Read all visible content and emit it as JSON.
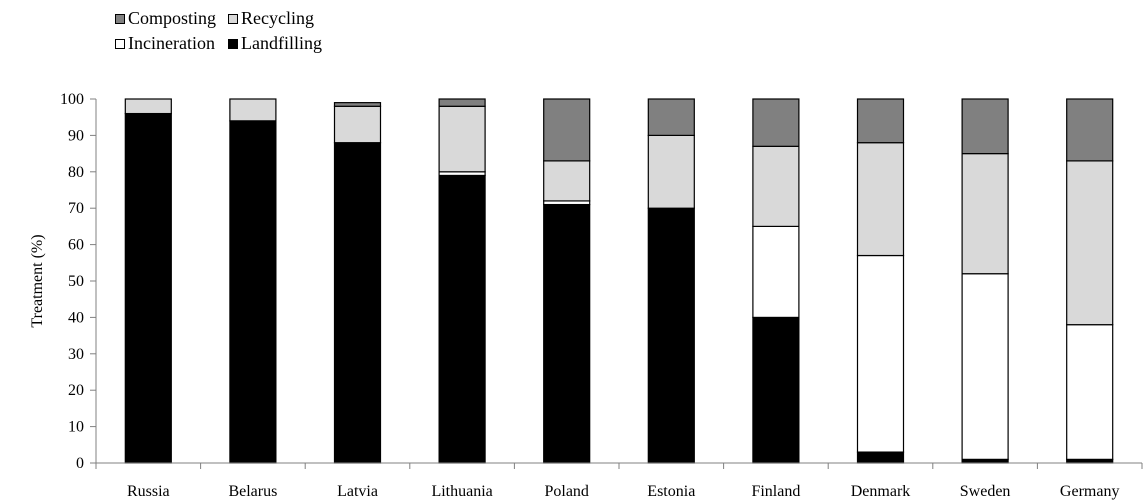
{
  "chart_data": {
    "type": "bar",
    "stacked": true,
    "ylabel": "Treatment  (%)",
    "ylim": [
      0,
      100
    ],
    "yticks": [
      0,
      10,
      20,
      30,
      40,
      50,
      60,
      70,
      80,
      90,
      100
    ],
    "grid": false,
    "legend_position": "top-left",
    "categories": [
      "Russia",
      "Belarus",
      "Latvia",
      "Lithuania",
      "Poland",
      "Estonia",
      "Finland",
      "Denmark",
      "Sweden",
      "Germany"
    ],
    "series": [
      {
        "name": "Landfilling",
        "color": "#000000",
        "values": [
          96,
          94,
          88,
          79,
          71,
          70,
          40,
          3,
          1,
          1
        ]
      },
      {
        "name": "Incineration",
        "color": "#ffffff",
        "values": [
          0,
          0,
          0,
          1,
          1,
          0,
          25,
          54,
          51,
          37
        ]
      },
      {
        "name": "Recycling",
        "color": "#d9d9d9",
        "values": [
          4,
          6,
          10,
          18,
          11,
          20,
          22,
          31,
          33,
          45
        ]
      },
      {
        "name": "Composting",
        "color": "#808080",
        "values": [
          0,
          0,
          1,
          2,
          17,
          10,
          13,
          12,
          15,
          17
        ]
      }
    ],
    "legend_order": [
      [
        "Composting",
        "Recycling"
      ],
      [
        "Incineration",
        "Landfilling"
      ]
    ]
  }
}
